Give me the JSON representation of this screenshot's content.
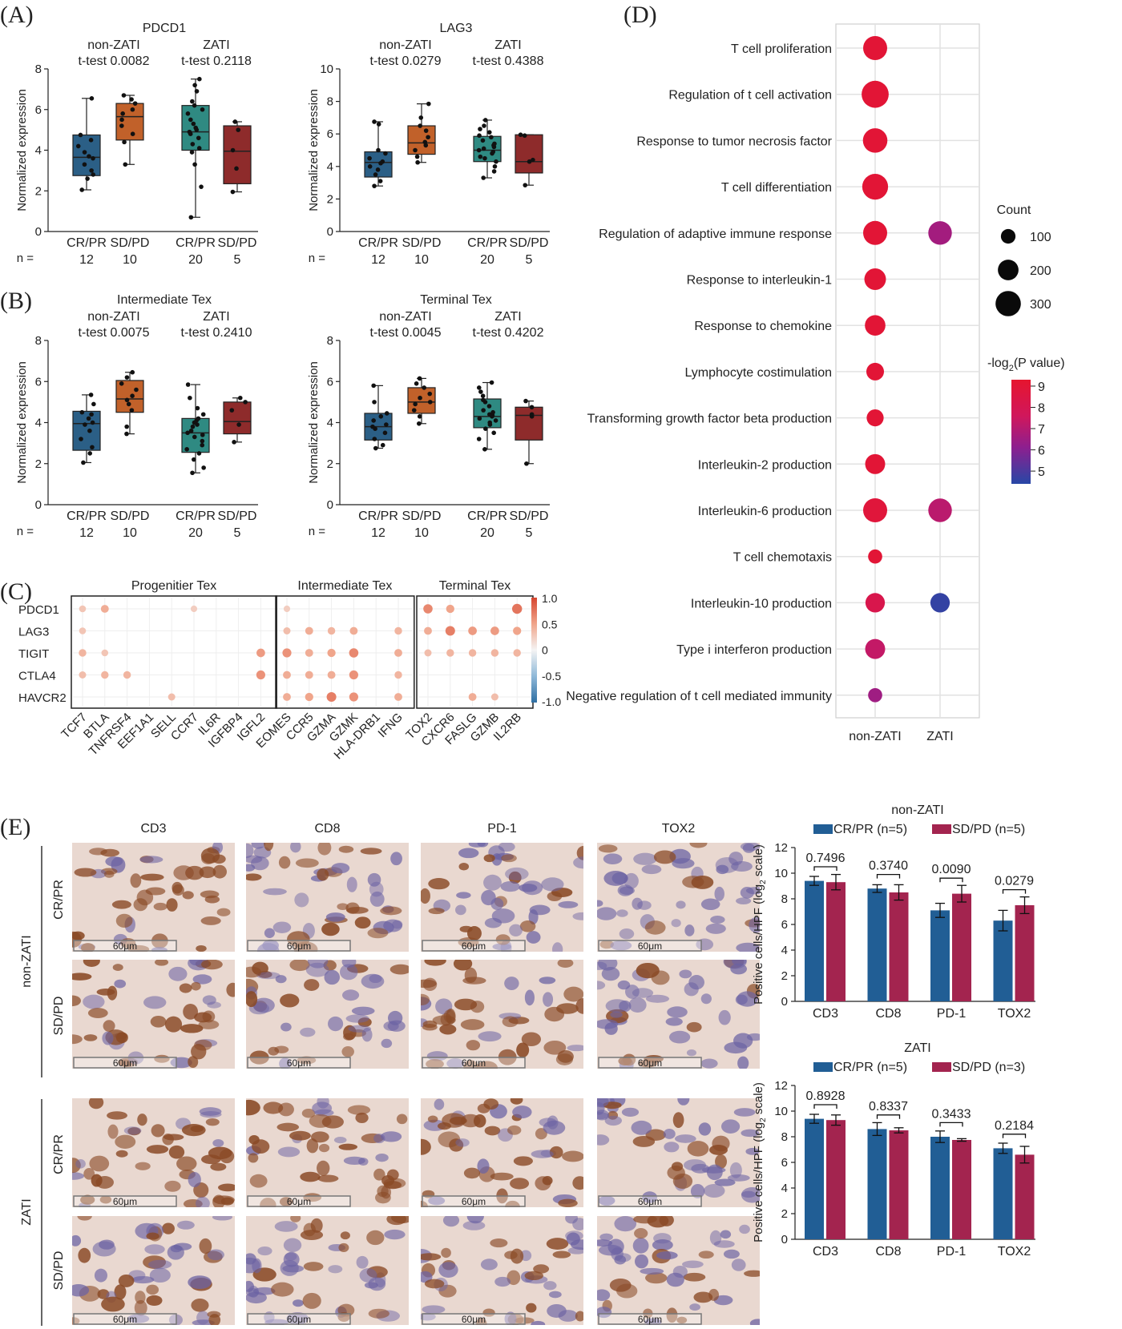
{
  "panel_labels": [
    "(A)",
    "(B)",
    "(C)",
    "(D)",
    "(E)"
  ],
  "box_common": {
    "ylabel": "Normalized expression",
    "n_prefix": "n =",
    "categories": [
      "CR/PR",
      "SD/PD",
      "CR/PR",
      "SD/PD"
    ],
    "counts": [
      "12",
      "10",
      "20",
      "5"
    ],
    "colors": [
      "#2b5f86",
      "#c1612a",
      "#2f8a82",
      "#8e2b2b"
    ]
  },
  "chart_data": [
    {
      "type": "box",
      "title": "PDCD1",
      "ylim": [
        0,
        8
      ],
      "yticks": [
        0,
        2,
        4,
        6,
        8
      ],
      "groups": [
        {
          "name": "non-ZATI",
          "test": "t-test 0.0082"
        },
        {
          "name": "ZATI",
          "test": "t-test 0.2118"
        }
      ],
      "boxes": [
        {
          "category": "CR/PR",
          "group": "non-ZATI",
          "n": 12,
          "min": 2.05,
          "q1": 2.75,
          "median": 3.65,
          "q3": 4.75,
          "max": 6.55,
          "points": [
            2.05,
            2.6,
            2.8,
            3.0,
            3.3,
            3.6,
            3.7,
            3.9,
            4.2,
            4.5,
            4.75,
            6.55
          ]
        },
        {
          "category": "SD/PD",
          "group": "non-ZATI",
          "n": 10,
          "min": 3.3,
          "q1": 4.5,
          "median": 5.65,
          "q3": 6.3,
          "max": 6.7,
          "points": [
            3.3,
            4.4,
            4.8,
            5.2,
            5.5,
            5.8,
            6.0,
            6.3,
            6.5,
            6.7
          ]
        },
        {
          "category": "CR/PR",
          "group": "ZATI",
          "n": 20,
          "min": 0.7,
          "q1": 4.0,
          "median": 4.9,
          "q3": 6.2,
          "max": 7.5,
          "points": [
            0.7,
            2.2,
            3.3,
            3.9,
            4.1,
            4.3,
            4.6,
            4.8,
            4.9,
            5.0,
            5.1,
            5.3,
            5.5,
            5.8,
            6.0,
            6.2,
            6.4,
            6.9,
            7.2,
            7.5
          ]
        },
        {
          "category": "SD/PD",
          "group": "ZATI",
          "n": 5,
          "min": 1.95,
          "q1": 2.35,
          "median": 3.95,
          "q3": 5.2,
          "max": 5.4,
          "points": [
            1.95,
            3.1,
            4.0,
            5.0,
            5.4
          ]
        }
      ]
    },
    {
      "type": "box",
      "title": "LAG3",
      "ylim": [
        0,
        10
      ],
      "yticks": [
        0,
        2,
        4,
        6,
        8,
        10
      ],
      "groups": [
        {
          "name": "non-ZATI",
          "test": "t-test 0.0279"
        },
        {
          "name": "ZATI",
          "test": "t-test 0.4388"
        }
      ],
      "boxes": [
        {
          "category": "CR/PR",
          "group": "non-ZATI",
          "n": 12,
          "min": 2.8,
          "q1": 3.35,
          "median": 4.25,
          "q3": 4.9,
          "max": 6.75,
          "points": [
            2.8,
            3.1,
            3.5,
            3.8,
            4.0,
            4.2,
            4.3,
            4.5,
            4.8,
            5.0,
            6.6,
            6.75
          ]
        },
        {
          "category": "SD/PD",
          "group": "non-ZATI",
          "n": 10,
          "min": 4.25,
          "q1": 4.75,
          "median": 5.45,
          "q3": 6.5,
          "max": 7.85,
          "points": [
            4.25,
            4.6,
            5.0,
            5.3,
            5.5,
            5.8,
            6.2,
            6.5,
            7.0,
            7.85
          ]
        },
        {
          "category": "CR/PR",
          "group": "ZATI",
          "n": 20,
          "min": 3.3,
          "q1": 4.3,
          "median": 5.0,
          "q3": 5.85,
          "max": 6.85,
          "points": [
            3.3,
            3.7,
            4.0,
            4.3,
            4.5,
            4.6,
            4.8,
            4.9,
            5.0,
            5.1,
            5.2,
            5.3,
            5.4,
            5.6,
            5.8,
            5.9,
            6.1,
            6.3,
            6.5,
            6.85
          ]
        },
        {
          "category": "SD/PD",
          "group": "ZATI",
          "n": 5,
          "min": 2.85,
          "q1": 3.6,
          "median": 4.3,
          "q3": 5.95,
          "max": 5.95,
          "points": [
            2.85,
            4.3,
            4.4,
            5.9,
            5.95
          ]
        }
      ]
    },
    {
      "type": "box",
      "title": "Intermediate Tex",
      "ylim": [
        0,
        8
      ],
      "yticks": [
        0,
        2,
        4,
        6,
        8
      ],
      "groups": [
        {
          "name": "non-ZATI",
          "test": "t-test 0.0075"
        },
        {
          "name": "ZATI",
          "test": "t-test 0.2410"
        }
      ],
      "boxes": [
        {
          "category": "CR/PR",
          "group": "non-ZATI",
          "n": 12,
          "min": 2.05,
          "q1": 2.65,
          "median": 3.95,
          "q3": 4.55,
          "max": 5.35,
          "points": [
            2.05,
            2.5,
            2.8,
            3.2,
            3.6,
            3.9,
            4.0,
            4.2,
            4.4,
            4.5,
            4.9,
            5.35
          ]
        },
        {
          "category": "SD/PD",
          "group": "non-ZATI",
          "n": 10,
          "min": 3.45,
          "q1": 4.5,
          "median": 5.15,
          "q3": 6.05,
          "max": 6.45,
          "points": [
            3.45,
            3.8,
            4.6,
            4.9,
            5.1,
            5.3,
            5.6,
            5.9,
            6.2,
            6.45
          ]
        },
        {
          "category": "CR/PR",
          "group": "ZATI",
          "n": 20,
          "min": 1.55,
          "q1": 2.55,
          "median": 3.5,
          "q3": 4.2,
          "max": 5.85,
          "points": [
            1.55,
            1.8,
            2.2,
            2.5,
            2.7,
            2.9,
            3.1,
            3.3,
            3.4,
            3.5,
            3.6,
            3.8,
            3.9,
            4.0,
            4.1,
            4.2,
            4.4,
            4.7,
            5.2,
            5.85
          ]
        },
        {
          "category": "SD/PD",
          "group": "ZATI",
          "n": 5,
          "min": 3.05,
          "q1": 3.45,
          "median": 4.05,
          "q3": 5.0,
          "max": 5.2,
          "points": [
            3.05,
            3.9,
            4.6,
            5.0,
            5.2
          ]
        }
      ]
    },
    {
      "type": "box",
      "title": "Terminal Tex",
      "ylim": [
        0,
        8
      ],
      "yticks": [
        0,
        2,
        4,
        6,
        8
      ],
      "groups": [
        {
          "name": "non-ZATI",
          "test": "t-test 0.0045"
        },
        {
          "name": "ZATI",
          "test": "t-test 0.4202"
        }
      ],
      "boxes": [
        {
          "category": "CR/PR",
          "group": "non-ZATI",
          "n": 12,
          "min": 2.75,
          "q1": 3.15,
          "median": 3.8,
          "q3": 4.45,
          "max": 5.8,
          "points": [
            2.75,
            2.9,
            3.2,
            3.5,
            3.7,
            3.8,
            3.9,
            4.1,
            4.3,
            4.45,
            5.0,
            5.8
          ]
        },
        {
          "category": "SD/PD",
          "group": "non-ZATI",
          "n": 10,
          "min": 3.95,
          "q1": 4.45,
          "median": 5.0,
          "q3": 5.7,
          "max": 6.15,
          "points": [
            3.95,
            4.3,
            4.6,
            4.9,
            5.0,
            5.2,
            5.4,
            5.7,
            5.9,
            6.15
          ]
        },
        {
          "category": "CR/PR",
          "group": "ZATI",
          "n": 20,
          "min": 2.7,
          "q1": 3.75,
          "median": 4.3,
          "q3": 5.15,
          "max": 5.95,
          "points": [
            2.7,
            3.2,
            3.5,
            3.7,
            3.9,
            4.0,
            4.1,
            4.2,
            4.3,
            4.35,
            4.4,
            4.5,
            4.6,
            4.8,
            5.0,
            5.1,
            5.3,
            5.5,
            5.7,
            5.95
          ]
        },
        {
          "category": "SD/PD",
          "group": "ZATI",
          "n": 5,
          "min": 2.0,
          "q1": 3.15,
          "median": 4.35,
          "q3": 4.75,
          "max": 5.05,
          "points": [
            2.0,
            4.3,
            4.4,
            4.75,
            5.05
          ]
        }
      ]
    },
    {
      "type": "heatmap",
      "rows": [
        "PDCD1",
        "LAG3",
        "TIGIT",
        "CTLA4",
        "HAVCR2"
      ],
      "colorbar": {
        "ticks": [
          "1.0",
          "0.5",
          "0",
          "-0.5",
          "-1.0"
        ],
        "range": [
          -1,
          1
        ]
      },
      "blocks": [
        {
          "title": "Progenitier Tex",
          "columns": [
            "TCF7",
            "BTLA",
            "TNFRSF4",
            "EEF1A1",
            "SELL",
            "CCR7",
            "IL6R",
            "IGFBP4",
            "IGFL2"
          ],
          "values": [
            [
              0.3,
              0.45,
              null,
              null,
              null,
              0.25,
              null,
              null,
              null
            ],
            [
              0.3,
              null,
              null,
              null,
              null,
              null,
              null,
              null,
              null
            ],
            [
              0.4,
              0.3,
              null,
              null,
              null,
              null,
              null,
              null,
              0.55
            ],
            [
              0.35,
              0.4,
              0.4,
              null,
              null,
              null,
              null,
              null,
              0.6
            ],
            [
              null,
              null,
              null,
              null,
              0.35,
              null,
              null,
              null,
              null
            ]
          ]
        },
        {
          "title": "Intermediate Tex",
          "columns": [
            "EOMES",
            "CCR5",
            "GZMA",
            "GZMK",
            "HLA-DRB1",
            "IFNG"
          ],
          "values": [
            [
              0.25,
              null,
              null,
              null,
              null,
              null
            ],
            [
              0.35,
              0.45,
              0.4,
              0.45,
              null,
              0.4
            ],
            [
              0.6,
              0.45,
              0.5,
              0.65,
              null,
              0.45
            ],
            [
              0.45,
              0.45,
              0.45,
              0.6,
              null,
              0.4
            ],
            [
              0.45,
              0.5,
              0.7,
              0.6,
              null,
              0.45
            ]
          ]
        },
        {
          "title": "Terminal Tex",
          "columns": [
            "TOX2",
            "CXCR6",
            "FASLG",
            "GZMB",
            "IL2RB"
          ],
          "values": [
            [
              0.65,
              0.5,
              null,
              null,
              0.75
            ],
            [
              0.45,
              0.7,
              0.55,
              0.55,
              0.5
            ],
            [
              0.35,
              0.4,
              0.4,
              0.4,
              0.4
            ],
            [
              null,
              null,
              null,
              null,
              null
            ],
            [
              null,
              null,
              0.45,
              0.35,
              null
            ]
          ]
        }
      ]
    },
    {
      "type": "bubble",
      "columns": [
        "non-ZATI",
        "ZATI"
      ],
      "size_legend": {
        "title": "Count",
        "values": [
          100,
          200,
          300
        ]
      },
      "color_legend": {
        "title": "-log",
        "title_sub": "2",
        "title_rest": "(P value)",
        "ticks": [
          9,
          8,
          7,
          6,
          5
        ],
        "range": [
          4.4,
          9.3
        ]
      },
      "terms": [
        {
          "term": "T cell proliferation",
          "points": [
            {
              "col": 0,
              "count": 260,
              "logp": 9.0
            }
          ]
        },
        {
          "term": "Regulation of t cell activation",
          "points": [
            {
              "col": 0,
              "count": 330,
              "logp": 9.0
            }
          ]
        },
        {
          "term": "Response to tumor necrosis factor",
          "points": [
            {
              "col": 0,
              "count": 270,
              "logp": 9.0
            }
          ]
        },
        {
          "term": "T cell differentiation",
          "points": [
            {
              "col": 0,
              "count": 300,
              "logp": 9.0
            }
          ]
        },
        {
          "term": "Regulation of adaptive immune response",
          "points": [
            {
              "col": 0,
              "count": 260,
              "logp": 9.0
            },
            {
              "col": 1,
              "count": 250,
              "logp": 6.6
            }
          ]
        },
        {
          "term": "Response to interleukin-1",
          "points": [
            {
              "col": 0,
              "count": 210,
              "logp": 9.0
            }
          ]
        },
        {
          "term": "Response to chemokine",
          "points": [
            {
              "col": 0,
              "count": 190,
              "logp": 9.0
            }
          ]
        },
        {
          "term": "Lymphocyte costimulation",
          "points": [
            {
              "col": 0,
              "count": 140,
              "logp": 9.0
            }
          ]
        },
        {
          "term": "Transforming growth factor beta production",
          "points": [
            {
              "col": 0,
              "count": 130,
              "logp": 9.0
            }
          ]
        },
        {
          "term": "Interleukin-2 production",
          "points": [
            {
              "col": 0,
              "count": 180,
              "logp": 9.0
            }
          ]
        },
        {
          "term": "Interleukin-6 production",
          "points": [
            {
              "col": 0,
              "count": 260,
              "logp": 8.8
            },
            {
              "col": 1,
              "count": 250,
              "logp": 7.1
            }
          ]
        },
        {
          "term": "T cell chemotaxis",
          "points": [
            {
              "col": 0,
              "count": 90,
              "logp": 9.0
            }
          ]
        },
        {
          "term": "Interleukin-10 production",
          "points": [
            {
              "col": 0,
              "count": 170,
              "logp": 8.2
            },
            {
              "col": 1,
              "count": 170,
              "logp": 4.6
            }
          ]
        },
        {
          "term": "Type i interferon production",
          "points": [
            {
              "col": 0,
              "count": 180,
              "logp": 7.3
            }
          ]
        },
        {
          "term": "Negative regulation of t cell mediated immunity",
          "points": [
            {
              "col": 0,
              "count": 90,
              "logp": 6.5
            }
          ]
        }
      ]
    },
    {
      "type": "bar",
      "title": "non-ZATI",
      "categories": [
        "CD3",
        "CD8",
        "PD-1",
        "TOX2"
      ],
      "ylabel": "Positive cells/HPF (log",
      "ylabel_sub": "2",
      "ylabel_rest": " scale)",
      "ylim": [
        0,
        12
      ],
      "yticks": [
        0,
        2,
        4,
        6,
        8,
        10,
        12
      ],
      "series": [
        {
          "name": "CR/PR (n=5)",
          "color": "#215e95",
          "values": [
            9.4,
            8.8,
            7.1,
            6.3
          ],
          "errors": [
            0.35,
            0.3,
            0.55,
            0.8
          ]
        },
        {
          "name": "SD/PD (n=5)",
          "color": "#a3244f",
          "values": [
            9.3,
            8.5,
            8.4,
            7.5
          ],
          "errors": [
            0.6,
            0.6,
            0.65,
            0.65
          ]
        }
      ],
      "pvalues": [
        "0.7496",
        "0.3740",
        "0.0090",
        "0.0279"
      ]
    },
    {
      "type": "bar",
      "title": "ZATI",
      "categories": [
        "CD3",
        "CD8",
        "PD-1",
        "TOX2"
      ],
      "ylabel": "Positive cells/HPF (log",
      "ylabel_sub": "2",
      "ylabel_rest": " scale)",
      "ylim": [
        0,
        12
      ],
      "yticks": [
        0,
        2,
        4,
        6,
        8,
        10,
        12
      ],
      "series": [
        {
          "name": "CR/PR (n=5)",
          "color": "#215e95",
          "values": [
            9.4,
            8.6,
            8.0,
            7.1
          ],
          "errors": [
            0.35,
            0.5,
            0.45,
            0.4
          ]
        },
        {
          "name": "SD/PD (n=3)",
          "color": "#a3244f",
          "values": [
            9.3,
            8.5,
            7.75,
            6.6
          ],
          "errors": [
            0.4,
            0.2,
            0.1,
            0.65
          ]
        }
      ],
      "pvalues": [
        "0.8928",
        "0.8337",
        "0.3433",
        "0.2184"
      ]
    }
  ],
  "ihc": {
    "columns": [
      "CD3",
      "CD8",
      "PD-1",
      "TOX2"
    ],
    "groups": [
      {
        "name": "non-ZATI",
        "rows": [
          "CR/PR",
          "SD/PD"
        ]
      },
      {
        "name": "ZATI",
        "rows": [
          "CR/PR",
          "SD/PD"
        ]
      }
    ],
    "scale_label": "60μm",
    "tint": {
      "bg": "#e9d8d0",
      "brown": "#8a4a26",
      "blue": "#6b62a3"
    },
    "intensity": [
      [
        0.85,
        0.35,
        0.3,
        0.2
      ],
      [
        0.6,
        0.5,
        0.65,
        0.25
      ],
      [
        0.8,
        0.65,
        0.6,
        0.25
      ],
      [
        0.55,
        0.5,
        0.55,
        0.3
      ]
    ]
  }
}
